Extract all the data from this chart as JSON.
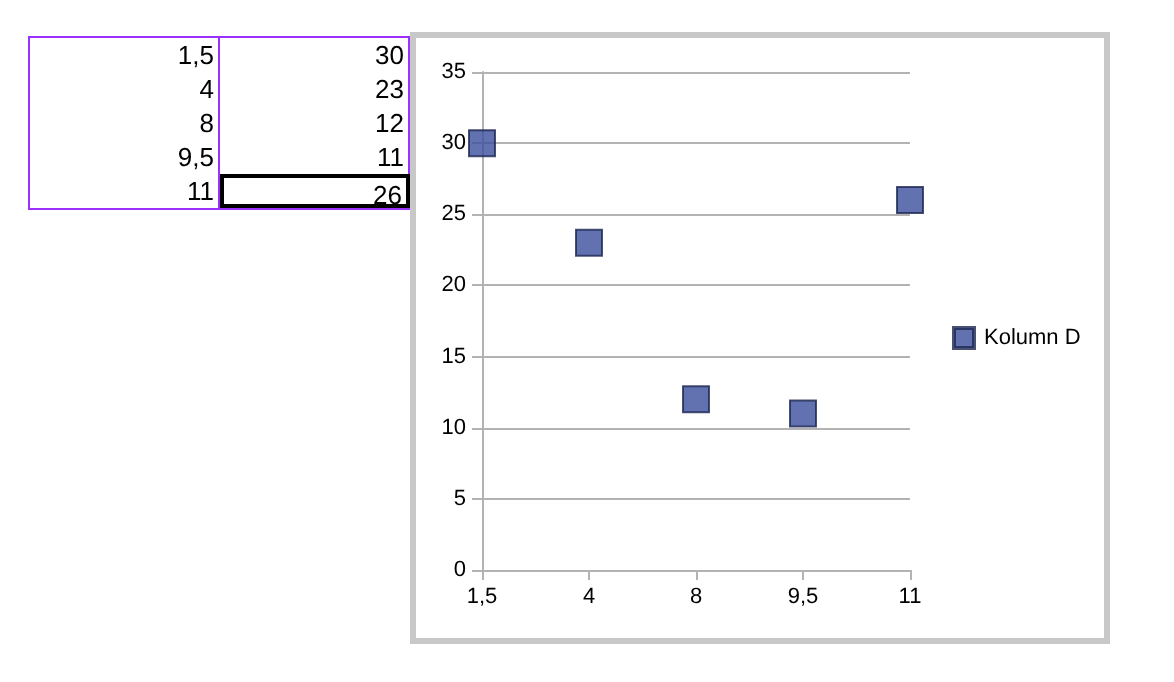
{
  "chart_data": {
    "type": "scatter",
    "categories": [
      "1,5",
      "4",
      "8",
      "9,5",
      "11"
    ],
    "series": [
      {
        "name": "Kolumn D",
        "color": "#3b4f9c",
        "values": [
          30,
          23,
          12,
          11,
          26
        ]
      }
    ],
    "ylim": [
      0,
      35
    ],
    "yticks": [
      0,
      5,
      10,
      15,
      20,
      25,
      30,
      35
    ],
    "grid": "y",
    "legend": "right",
    "marker": "square",
    "annotations": [
      "1,5",
      "30",
      "4",
      "23",
      "8",
      "12",
      "9,5",
      "11",
      "11",
      "26"
    ]
  }
}
